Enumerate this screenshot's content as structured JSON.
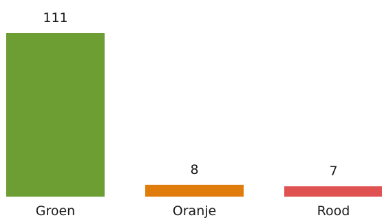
{
  "chart_data": {
    "type": "bar",
    "categories": [
      "Groen",
      "Oranje",
      "Rood"
    ],
    "values": [
      111,
      8,
      7
    ],
    "data_labels": [
      "111",
      "8",
      "7"
    ],
    "colors": [
      "#6c9e34",
      "#e07c0c",
      "#e05252"
    ],
    "title": "",
    "xlabel": "",
    "ylabel": "",
    "ylim": [
      0,
      111
    ],
    "grid": false,
    "legend": "none"
  }
}
